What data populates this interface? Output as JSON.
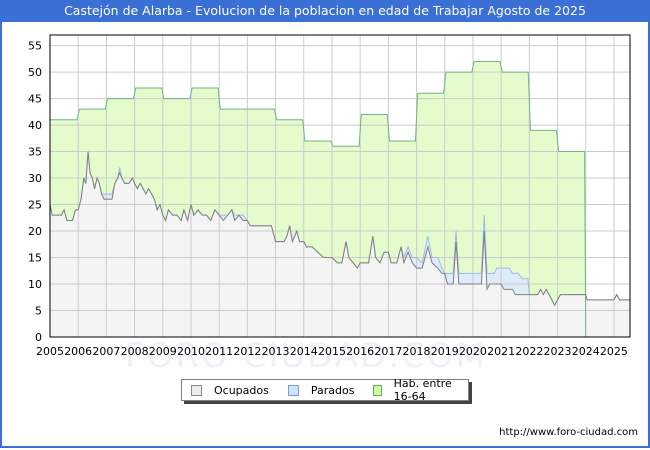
{
  "title": "Castejón de Alarba - Evolucion de la poblacion en edad de Trabajar Agosto de 2025",
  "watermark": "FORO CIUDAD.COM",
  "credit": "http://www.foro-ciudad.com",
  "legend": [
    {
      "label": "Ocupados",
      "color": "#eeeeee",
      "border": "#888888"
    },
    {
      "label": "Parados",
      "color": "#cfe3fb",
      "border": "#7aa0d8"
    },
    {
      "label": "Hab. entre 16-64",
      "color": "#ccff99",
      "border": "#66aa66"
    }
  ],
  "colors": {
    "hab_fill": "#e4fccb",
    "hab_line": "#6fb58c",
    "parados_fill": "#dfeafa",
    "parados_line": "#9bbbed",
    "ocupados_fill": "#f4f4f4",
    "ocupados_line": "#808080",
    "grid": "#cccccc",
    "axis": "#000000"
  },
  "chart_data": {
    "type": "area",
    "title": "Castejón de Alarba - Evolucion de la poblacion en edad de Trabajar Agosto de 2025",
    "xlabel": "",
    "ylabel": "",
    "xlim": [
      2005,
      2025.57
    ],
    "ylim": [
      0,
      57
    ],
    "yticks": [
      0,
      5,
      10,
      15,
      20,
      25,
      30,
      35,
      40,
      45,
      50,
      55
    ],
    "xticks": [
      2005,
      2006,
      2007,
      2008,
      2009,
      2010,
      2011,
      2012,
      2013,
      2014,
      2015,
      2016,
      2017,
      2018,
      2019,
      2020,
      2021,
      2022,
      2023,
      2024,
      2025
    ],
    "grid": true,
    "legend_position": "bottom",
    "series": [
      {
        "name": "Hab. entre 16-64",
        "kind": "yearly-step",
        "years": [
          2005,
          2006,
          2007,
          2008,
          2009,
          2010,
          2011,
          2012,
          2013,
          2014,
          2015,
          2016,
          2017,
          2018,
          2019,
          2020,
          2021,
          2022,
          2023
        ],
        "values": [
          41,
          43,
          45,
          47,
          45,
          47,
          43,
          43,
          41,
          37,
          36,
          42,
          37,
          46,
          50,
          52,
          50,
          39,
          35
        ],
        "end": 2024.0
      },
      {
        "name": "Parados",
        "kind": "stacked-top (ocupados + parados)",
        "points": [
          [
            2005.0,
            25
          ],
          [
            2005.08,
            23
          ],
          [
            2005.25,
            23
          ],
          [
            2005.4,
            23
          ],
          [
            2005.5,
            24
          ],
          [
            2005.6,
            22
          ],
          [
            2005.8,
            22
          ],
          [
            2005.9,
            24
          ],
          [
            2006.0,
            24
          ],
          [
            2006.1,
            26
          ],
          [
            2006.2,
            30
          ],
          [
            2006.27,
            29
          ],
          [
            2006.35,
            35
          ],
          [
            2006.42,
            31
          ],
          [
            2006.5,
            30
          ],
          [
            2006.58,
            28
          ],
          [
            2006.67,
            30
          ],
          [
            2006.75,
            29
          ],
          [
            2006.83,
            27
          ],
          [
            2006.92,
            27
          ],
          [
            2007.0,
            27
          ],
          [
            2007.2,
            27
          ],
          [
            2007.3,
            29
          ],
          [
            2007.4,
            30
          ],
          [
            2007.47,
            32
          ],
          [
            2007.55,
            30
          ],
          [
            2007.65,
            29
          ],
          [
            2007.8,
            29
          ],
          [
            2007.92,
            30
          ],
          [
            2008.0,
            29
          ],
          [
            2008.1,
            28
          ],
          [
            2008.2,
            29
          ],
          [
            2008.3,
            28
          ],
          [
            2008.4,
            27
          ],
          [
            2008.5,
            28
          ],
          [
            2008.6,
            27
          ],
          [
            2008.7,
            26
          ],
          [
            2008.8,
            24
          ],
          [
            2008.9,
            25
          ],
          [
            2009.0,
            23
          ],
          [
            2009.1,
            22
          ],
          [
            2009.2,
            24
          ],
          [
            2009.35,
            23
          ],
          [
            2009.5,
            23
          ],
          [
            2009.65,
            22
          ],
          [
            2009.75,
            24
          ],
          [
            2009.88,
            22
          ],
          [
            2010.0,
            25
          ],
          [
            2010.1,
            23
          ],
          [
            2010.25,
            24
          ],
          [
            2010.4,
            23
          ],
          [
            2010.55,
            23
          ],
          [
            2010.7,
            22
          ],
          [
            2010.85,
            24
          ],
          [
            2011.0,
            23
          ],
          [
            2011.15,
            23
          ],
          [
            2011.3,
            23
          ],
          [
            2011.45,
            24
          ],
          [
            2011.55,
            23
          ],
          [
            2011.7,
            23
          ],
          [
            2011.85,
            23
          ],
          [
            2012.0,
            22
          ],
          [
            2012.1,
            21
          ],
          [
            2012.5,
            21
          ],
          [
            2012.85,
            21
          ],
          [
            2013.0,
            18
          ],
          [
            2013.3,
            18
          ],
          [
            2013.4,
            19
          ],
          [
            2013.5,
            21
          ],
          [
            2013.6,
            18
          ],
          [
            2013.75,
            20
          ],
          [
            2013.85,
            18
          ],
          [
            2014.0,
            18
          ],
          [
            2014.1,
            17
          ],
          [
            2014.3,
            17
          ],
          [
            2014.5,
            16
          ],
          [
            2014.7,
            15
          ],
          [
            2015.0,
            15
          ],
          [
            2015.2,
            14
          ],
          [
            2015.35,
            14
          ],
          [
            2015.5,
            18
          ],
          [
            2015.6,
            15
          ],
          [
            2015.75,
            14
          ],
          [
            2015.9,
            13
          ],
          [
            2016.0,
            14
          ],
          [
            2016.3,
            14
          ],
          [
            2016.45,
            19
          ],
          [
            2016.55,
            15
          ],
          [
            2016.7,
            14
          ],
          [
            2016.85,
            16
          ],
          [
            2017.0,
            16
          ],
          [
            2017.1,
            14
          ],
          [
            2017.3,
            14
          ],
          [
            2017.45,
            17
          ],
          [
            2017.55,
            15
          ],
          [
            2017.7,
            17
          ],
          [
            2017.85,
            15
          ],
          [
            2018.0,
            15
          ],
          [
            2018.2,
            14
          ],
          [
            2018.4,
            19
          ],
          [
            2018.55,
            15
          ],
          [
            2018.75,
            15
          ],
          [
            2018.9,
            13
          ],
          [
            2019.0,
            12
          ],
          [
            2019.3,
            12
          ],
          [
            2019.4,
            20
          ],
          [
            2019.5,
            12
          ],
          [
            2020.3,
            12
          ],
          [
            2020.4,
            23
          ],
          [
            2020.5,
            12
          ],
          [
            2020.75,
            12
          ],
          [
            2020.85,
            13
          ],
          [
            2021.3,
            13
          ],
          [
            2021.4,
            12
          ],
          [
            2021.6,
            12
          ],
          [
            2021.75,
            11
          ],
          [
            2021.95,
            11
          ],
          [
            2022.0,
            8
          ],
          [
            2022.3,
            8
          ],
          [
            2022.4,
            9
          ],
          [
            2022.5,
            8
          ],
          [
            2022.6,
            9
          ],
          [
            2022.7,
            8
          ],
          [
            2022.8,
            7
          ],
          [
            2022.9,
            6
          ],
          [
            2023.0,
            7
          ],
          [
            2023.1,
            8
          ],
          [
            2024.0,
            8
          ],
          [
            2024.05,
            7
          ],
          [
            2025.0,
            7
          ],
          [
            2025.1,
            8
          ],
          [
            2025.2,
            7
          ],
          [
            2025.57,
            7
          ]
        ]
      },
      {
        "name": "Ocupados",
        "kind": "line-area",
        "points": [
          [
            2005.0,
            25
          ],
          [
            2005.08,
            23
          ],
          [
            2005.25,
            23
          ],
          [
            2005.4,
            23
          ],
          [
            2005.5,
            24
          ],
          [
            2005.6,
            22
          ],
          [
            2005.8,
            22
          ],
          [
            2005.9,
            24
          ],
          [
            2006.0,
            24
          ],
          [
            2006.1,
            26
          ],
          [
            2006.2,
            30
          ],
          [
            2006.27,
            29
          ],
          [
            2006.35,
            35
          ],
          [
            2006.42,
            31
          ],
          [
            2006.5,
            30
          ],
          [
            2006.58,
            28
          ],
          [
            2006.67,
            30
          ],
          [
            2006.75,
            29
          ],
          [
            2006.83,
            27
          ],
          [
            2006.92,
            26
          ],
          [
            2007.0,
            26
          ],
          [
            2007.2,
            26
          ],
          [
            2007.3,
            29
          ],
          [
            2007.4,
            30
          ],
          [
            2007.47,
            31
          ],
          [
            2007.55,
            30
          ],
          [
            2007.65,
            29
          ],
          [
            2007.8,
            29
          ],
          [
            2007.92,
            30
          ],
          [
            2008.0,
            29
          ],
          [
            2008.1,
            28
          ],
          [
            2008.2,
            29
          ],
          [
            2008.3,
            28
          ],
          [
            2008.4,
            27
          ],
          [
            2008.5,
            28
          ],
          [
            2008.6,
            27
          ],
          [
            2008.7,
            26
          ],
          [
            2008.8,
            24
          ],
          [
            2008.9,
            25
          ],
          [
            2009.0,
            23
          ],
          [
            2009.1,
            22
          ],
          [
            2009.2,
            24
          ],
          [
            2009.35,
            23
          ],
          [
            2009.5,
            23
          ],
          [
            2009.65,
            22
          ],
          [
            2009.75,
            24
          ],
          [
            2009.88,
            22
          ],
          [
            2010.0,
            25
          ],
          [
            2010.1,
            23
          ],
          [
            2010.25,
            24
          ],
          [
            2010.4,
            23
          ],
          [
            2010.55,
            23
          ],
          [
            2010.7,
            22
          ],
          [
            2010.85,
            24
          ],
          [
            2011.0,
            23
          ],
          [
            2011.15,
            22
          ],
          [
            2011.3,
            23
          ],
          [
            2011.45,
            24
          ],
          [
            2011.55,
            22
          ],
          [
            2011.7,
            23
          ],
          [
            2011.85,
            22
          ],
          [
            2012.0,
            22
          ],
          [
            2012.1,
            21
          ],
          [
            2012.5,
            21
          ],
          [
            2012.85,
            21
          ],
          [
            2013.0,
            18
          ],
          [
            2013.3,
            18
          ],
          [
            2013.4,
            19
          ],
          [
            2013.5,
            21
          ],
          [
            2013.6,
            18
          ],
          [
            2013.75,
            20
          ],
          [
            2013.85,
            18
          ],
          [
            2014.0,
            18
          ],
          [
            2014.1,
            17
          ],
          [
            2014.3,
            17
          ],
          [
            2014.5,
            16
          ],
          [
            2014.7,
            15
          ],
          [
            2015.0,
            15
          ],
          [
            2015.2,
            14
          ],
          [
            2015.35,
            14
          ],
          [
            2015.5,
            18
          ],
          [
            2015.6,
            15
          ],
          [
            2015.75,
            14
          ],
          [
            2015.9,
            13
          ],
          [
            2016.0,
            14
          ],
          [
            2016.3,
            14
          ],
          [
            2016.45,
            19
          ],
          [
            2016.55,
            15
          ],
          [
            2016.7,
            14
          ],
          [
            2016.85,
            16
          ],
          [
            2017.0,
            16
          ],
          [
            2017.1,
            14
          ],
          [
            2017.3,
            14
          ],
          [
            2017.45,
            17
          ],
          [
            2017.55,
            14
          ],
          [
            2017.7,
            16
          ],
          [
            2017.85,
            14
          ],
          [
            2018.0,
            13
          ],
          [
            2018.2,
            13
          ],
          [
            2018.4,
            17
          ],
          [
            2018.55,
            14
          ],
          [
            2018.75,
            13
          ],
          [
            2018.9,
            12
          ],
          [
            2019.0,
            12
          ],
          [
            2019.1,
            10
          ],
          [
            2019.3,
            10
          ],
          [
            2019.4,
            18
          ],
          [
            2019.5,
            10
          ],
          [
            2020.3,
            10
          ],
          [
            2020.4,
            20
          ],
          [
            2020.5,
            9
          ],
          [
            2020.6,
            10
          ],
          [
            2020.8,
            10
          ],
          [
            2021.0,
            10
          ],
          [
            2021.1,
            9
          ],
          [
            2021.4,
            9
          ],
          [
            2021.5,
            8
          ],
          [
            2022.0,
            8
          ],
          [
            2022.3,
            8
          ],
          [
            2022.4,
            9
          ],
          [
            2022.5,
            8
          ],
          [
            2022.6,
            9
          ],
          [
            2022.7,
            8
          ],
          [
            2022.8,
            7
          ],
          [
            2022.9,
            6
          ],
          [
            2023.0,
            7
          ],
          [
            2023.1,
            8
          ],
          [
            2024.0,
            8
          ],
          [
            2024.05,
            7
          ],
          [
            2025.0,
            7
          ],
          [
            2025.1,
            8
          ],
          [
            2025.2,
            7
          ],
          [
            2025.57,
            7
          ]
        ]
      }
    ]
  }
}
